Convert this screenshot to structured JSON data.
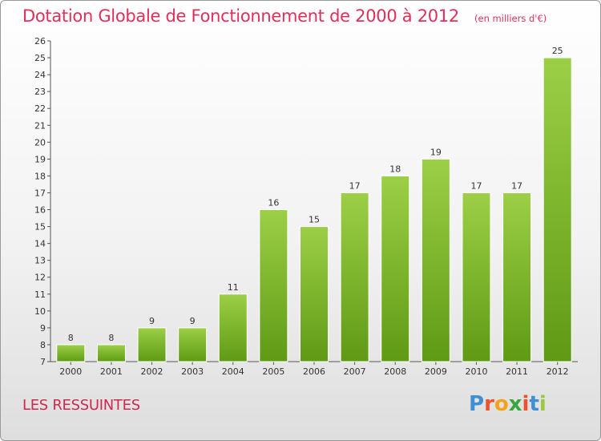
{
  "chart_data": {
    "type": "bar",
    "title": "Dotation Globale de Fonctionnement de 2000 à 2012",
    "subtitle": "(en milliers d'€)",
    "categories": [
      "2000",
      "2001",
      "2002",
      "2003",
      "2004",
      "2005",
      "2006",
      "2007",
      "2008",
      "2009",
      "2010",
      "2011",
      "2012"
    ],
    "values": [
      8,
      8,
      9,
      9,
      11,
      16,
      15,
      17,
      18,
      19,
      17,
      17,
      25
    ],
    "ylim": [
      7,
      26
    ],
    "yticks": [
      7,
      8,
      9,
      10,
      11,
      12,
      13,
      14,
      15,
      16,
      17,
      18,
      19,
      20,
      21,
      22,
      23,
      24,
      25,
      26
    ],
    "grid": false,
    "xlabel": "",
    "ylabel": "",
    "colors": {
      "bar_light": "#9ccf46",
      "bar_dark": "#5f9a15",
      "title": "#e0305a",
      "axis": "#555555"
    }
  },
  "place": "LES RESSUINTES",
  "brand": {
    "text": "Proxiti",
    "letter_colors": [
      "#3f8fd3",
      "#e9542f",
      "#f2a31b",
      "#3aa53a",
      "#e9542f",
      "#3f8fd3",
      "#9bc83c"
    ]
  }
}
